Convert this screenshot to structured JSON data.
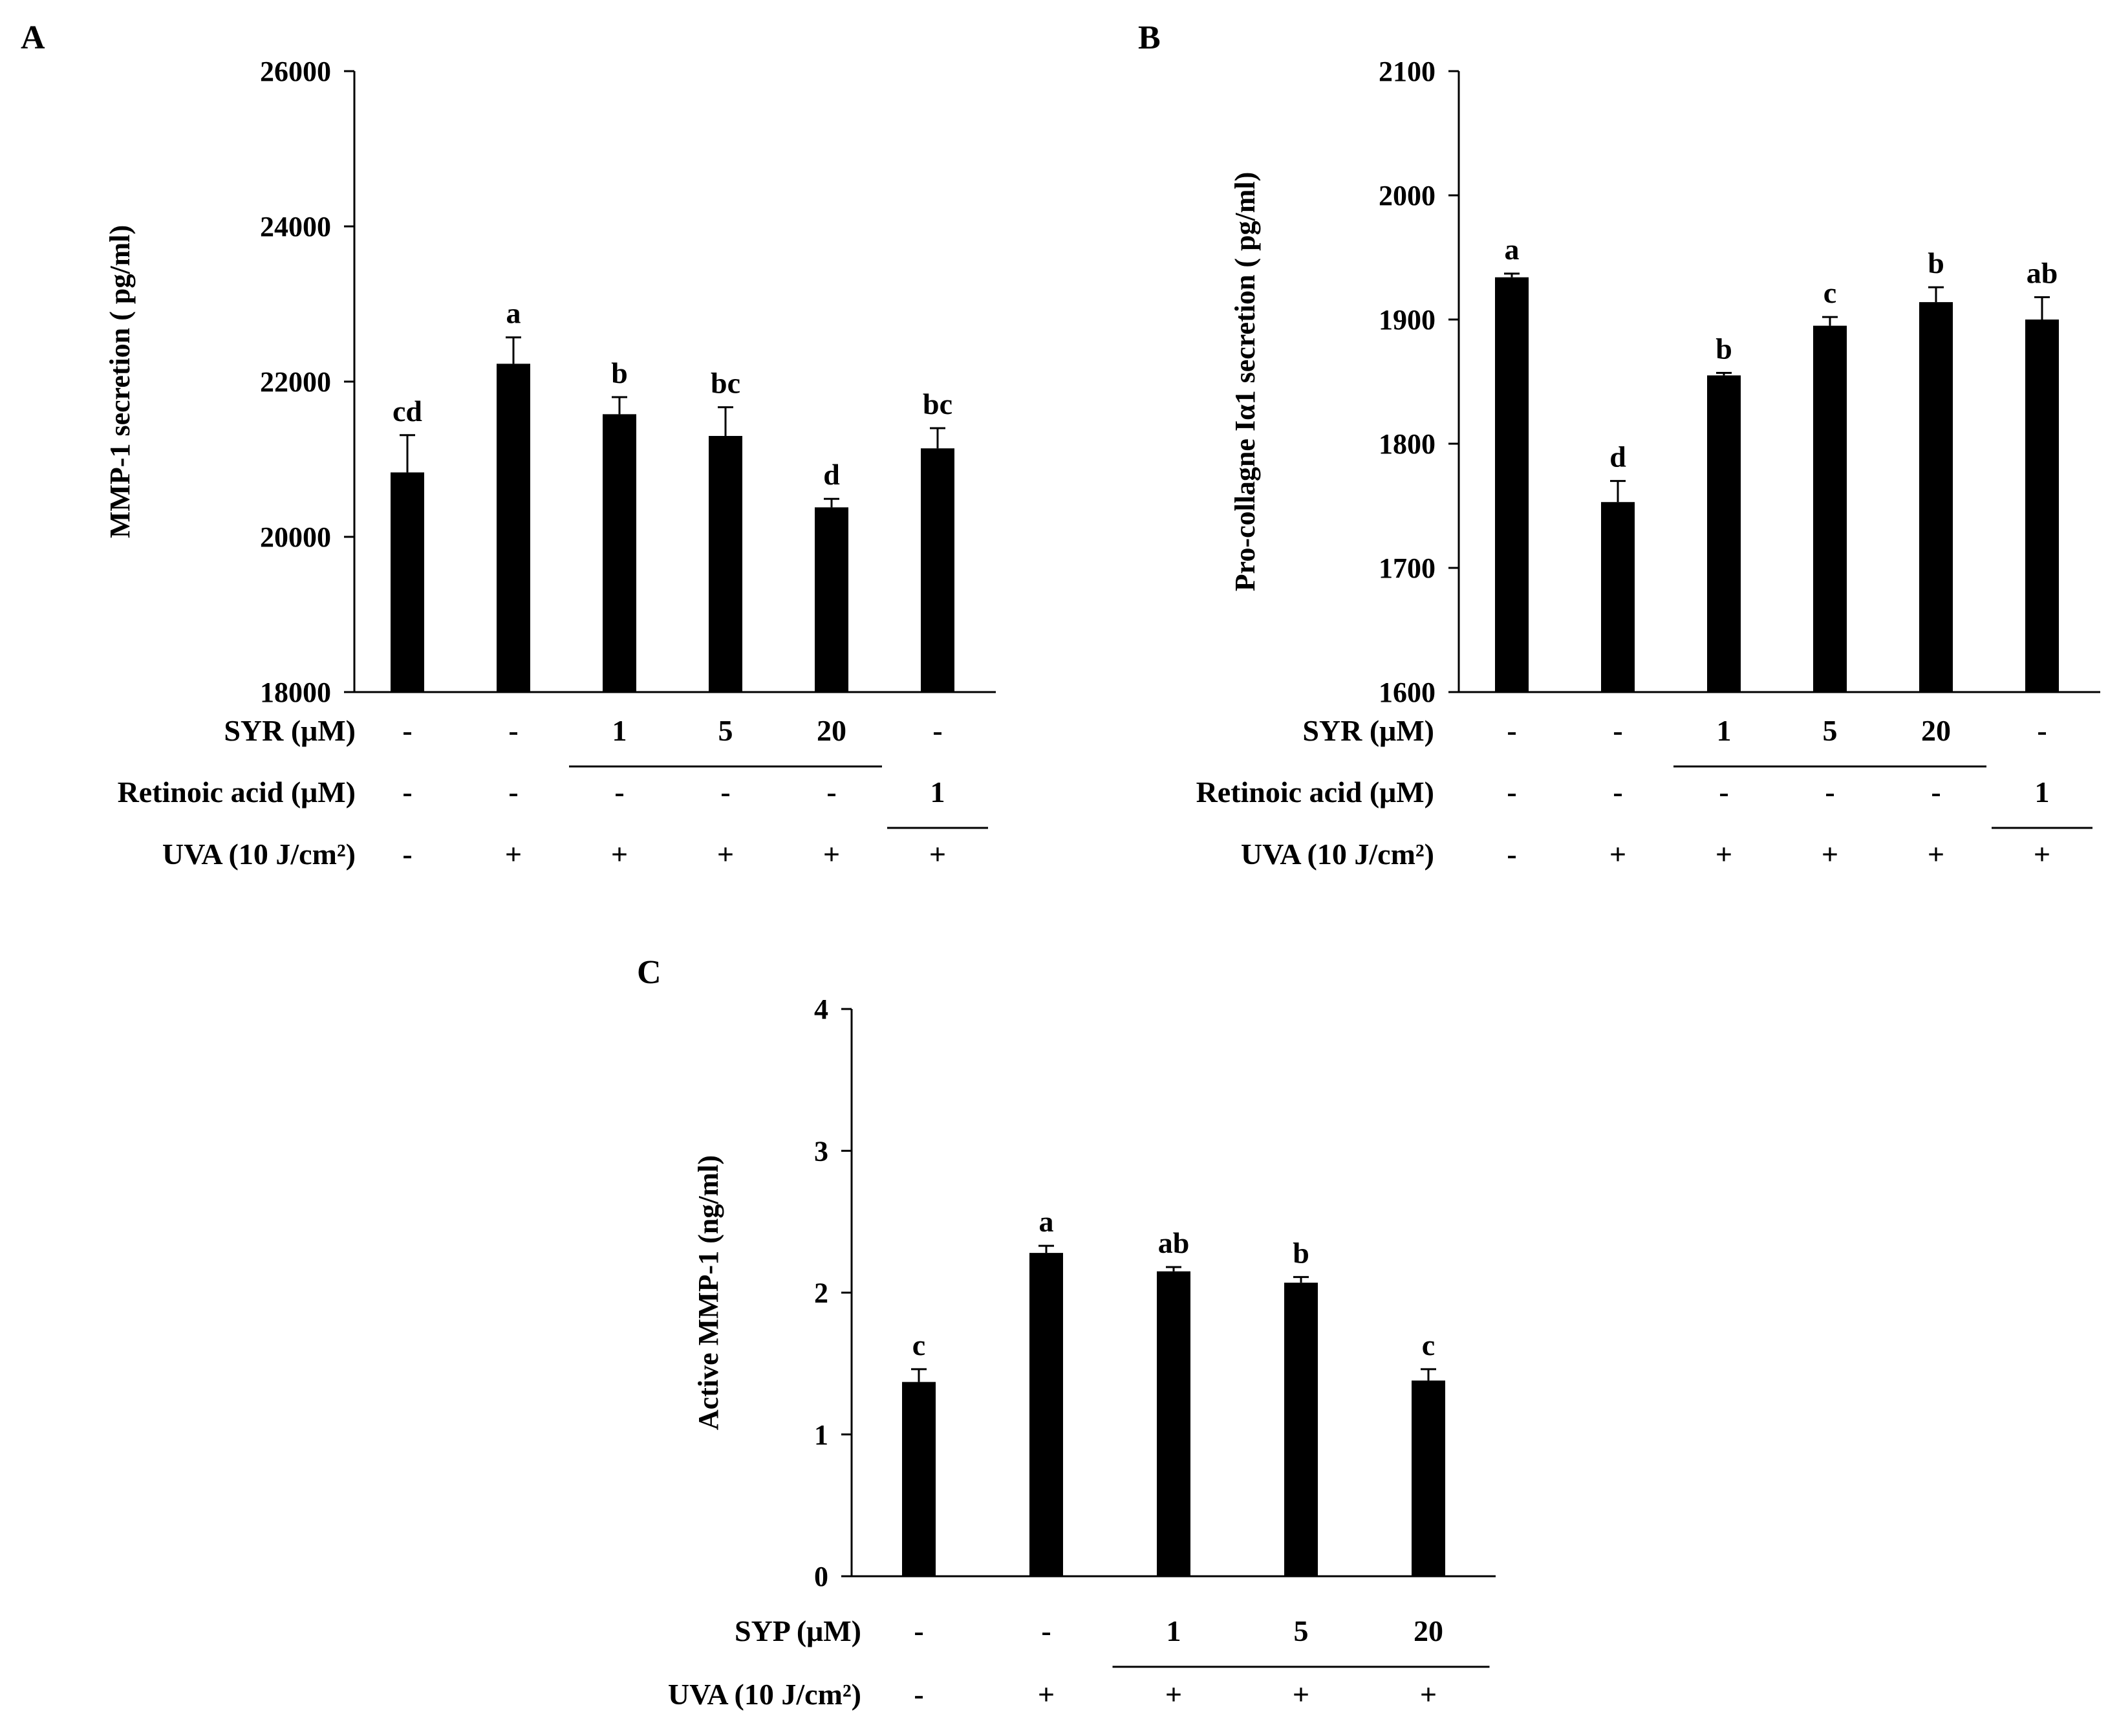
{
  "chart_data": [
    {
      "id": "A",
      "type": "bar",
      "panel_label": "A",
      "ylabel": "MMP-1 secretion ( pg/ml)",
      "ylim": [
        18000,
        26000
      ],
      "yticks": [
        18000,
        20000,
        22000,
        24000,
        26000
      ],
      "ytick_labels": [
        "18000",
        "20000",
        "22000",
        "24000",
        "26000"
      ],
      "values": [
        20830,
        22230,
        21580,
        21300,
        20380,
        21140
      ],
      "errors": [
        480,
        340,
        220,
        370,
        110,
        260
      ],
      "significance": [
        "cd",
        "a",
        "b",
        "bc",
        "d",
        "bc"
      ],
      "bar_color": "#000000",
      "treatments": [
        {
          "label": "SYR (μM)",
          "cells": [
            "-",
            "-",
            "1",
            "5",
            "20",
            "-"
          ],
          "underline": [
            2,
            4
          ]
        },
        {
          "label": "Retinoic acid (μM)",
          "cells": [
            "-",
            "-",
            "-",
            "-",
            "-",
            "1"
          ],
          "underline": [
            5,
            5
          ]
        },
        {
          "label": "UVA (10 J/cm²)",
          "cells": [
            "-",
            "+",
            "+",
            "+",
            "+",
            "+"
          ]
        }
      ]
    },
    {
      "id": "B",
      "type": "bar",
      "panel_label": "B",
      "ylabel": "Pro-collagne Iα1 secretion ( pg/ml)",
      "ylim": [
        1600,
        2100
      ],
      "yticks": [
        1600,
        1700,
        1800,
        1900,
        2000,
        2100
      ],
      "ytick_labels": [
        "1600",
        "1700",
        "1800",
        "1900",
        "2000",
        "2100"
      ],
      "values": [
        1934,
        1753,
        1855,
        1895,
        1914,
        1900
      ],
      "errors": [
        3,
        17,
        2,
        7,
        12,
        18
      ],
      "significance": [
        "a",
        "d",
        "b",
        "c",
        "b",
        "ab"
      ],
      "bar_color": "#000000",
      "treatments": [
        {
          "label": "SYR (μM)",
          "cells": [
            "-",
            "-",
            "1",
            "5",
            "20",
            "-"
          ],
          "underline": [
            2,
            4
          ]
        },
        {
          "label": "Retinoic acid (μM)",
          "cells": [
            "-",
            "-",
            "-",
            "-",
            "-",
            "1"
          ],
          "underline": [
            5,
            5
          ]
        },
        {
          "label": "UVA (10 J/cm²)",
          "cells": [
            "-",
            "+",
            "+",
            "+",
            "+",
            "+"
          ]
        }
      ]
    },
    {
      "id": "C",
      "type": "bar",
      "panel_label": "C",
      "ylabel": "Active MMP-1 (ng/ml)",
      "ylim": [
        0,
        4
      ],
      "yticks": [
        0,
        1,
        2,
        3,
        4
      ],
      "ytick_labels": [
        "0",
        "1",
        "2",
        "3",
        "4"
      ],
      "values": [
        1.37,
        2.28,
        2.15,
        2.07,
        1.38
      ],
      "errors": [
        0.09,
        0.05,
        0.03,
        0.04,
        0.08
      ],
      "significance": [
        "c",
        "a",
        "ab",
        "b",
        "c"
      ],
      "bar_color": "#000000",
      "treatments": [
        {
          "label": "SYP (μM)",
          "cells": [
            "-",
            "-",
            "1",
            "5",
            "20"
          ],
          "underline": [
            2,
            4
          ]
        },
        {
          "label": "UVA (10 J/cm²)",
          "cells": [
            "-",
            "+",
            "+",
            "+",
            "+"
          ]
        }
      ]
    }
  ]
}
